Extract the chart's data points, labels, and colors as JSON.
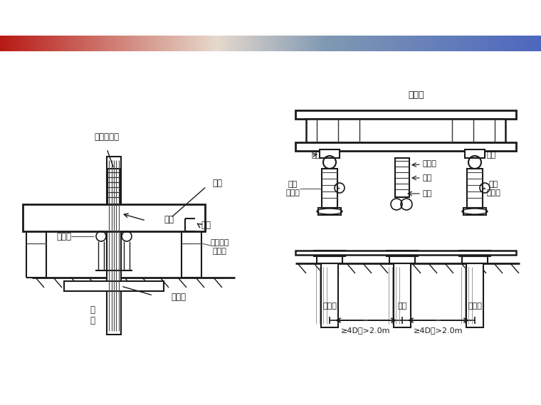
{
  "bg_color": "#ffffff",
  "line_color": "#1a1a1a",
  "labels": {
    "chuanxin_qianjinding": "穿心千斤顶",
    "zhuliang": "主梁",
    "zhujin": "主筋",
    "padblock": "垫块",
    "baifenbiao": "百分表",
    "zhichengdun": "支承墩或\n支承桩",
    "jizhuanliang": "基准梁",
    "shizhuang": "试\n桩",
    "fanli_liang": "反力梁",
    "qiujiao_left": "球铰",
    "qiujiao_right": "球铰",
    "yaya_qjd_left": "液压\n千斤顶",
    "yaya_qjd_right": "液压\n千斤顶",
    "ceweibiao": "测微表",
    "biaozuo": "表座",
    "jijhun": "基准",
    "zhichengzhuang_left": "支承桩",
    "shizhuang2": "试桩",
    "zhichengzhuang_right": "支承桩",
    "dist_label1": "≥4D且>2.0m",
    "dist_label2": "≥4D且>2.0m"
  }
}
